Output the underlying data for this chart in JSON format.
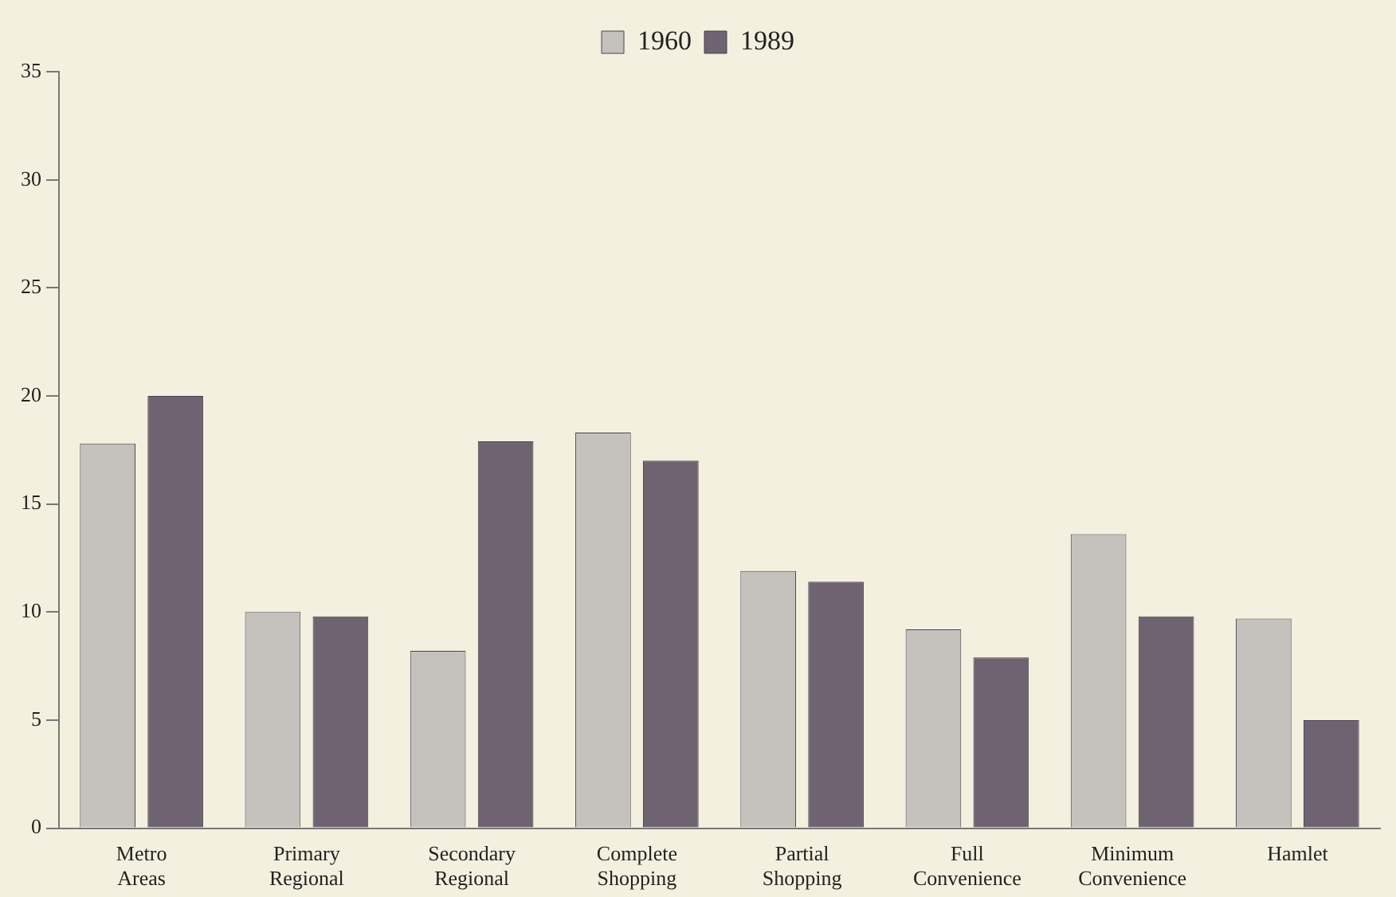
{
  "chart_data": {
    "type": "bar",
    "categories": [
      "Metro Areas",
      "Primary Regional",
      "Secondary Regional",
      "Complete Shopping",
      "Partial Shopping",
      "Full Convenience",
      "Minimum Convenience",
      "Hamlet"
    ],
    "series": [
      {
        "name": "1960",
        "color": "#c5c1bd",
        "values": [
          17.8,
          10,
          8.2,
          18.3,
          11.9,
          9.2,
          13.6,
          9.7
        ]
      },
      {
        "name": "1989",
        "color": "#6f6371",
        "values": [
          20,
          9.8,
          17.9,
          17,
          11.4,
          7.9,
          9.8,
          5
        ]
      }
    ],
    "ylim": [
      0,
      35
    ],
    "yticks": [
      0,
      5,
      10,
      15,
      20,
      25,
      30,
      35
    ],
    "grid": false,
    "legend": "top"
  }
}
